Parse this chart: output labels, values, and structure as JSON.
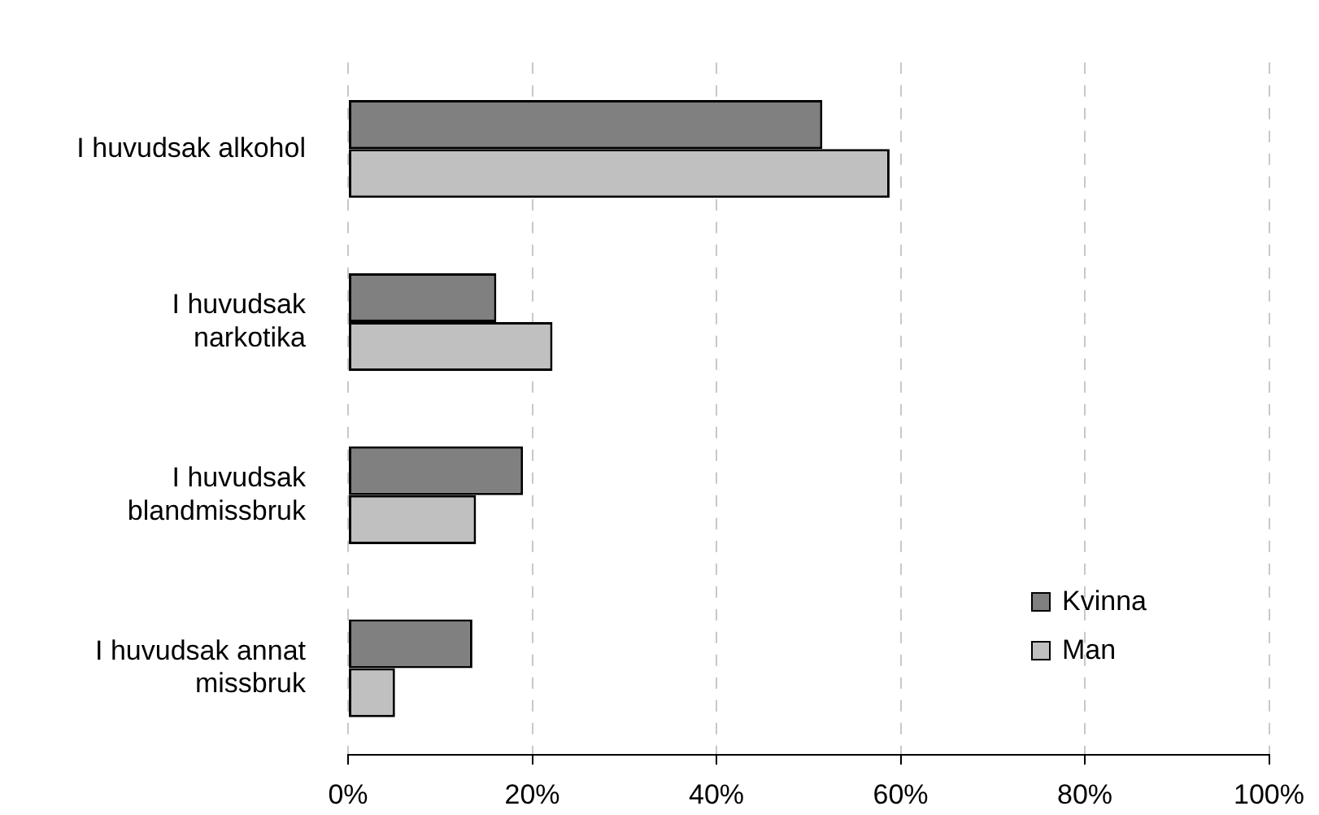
{
  "chart_data": {
    "type": "bar",
    "orientation": "horizontal",
    "categories": [
      "I huvudsak alkohol",
      "I huvudsak narkotika",
      "I huvudsak blandmissbruk",
      "I huvudsak annat missbruk"
    ],
    "series": [
      {
        "name": "Kvinna",
        "color": "#808080",
        "values": [
          51.5,
          16.1,
          19.0,
          13.5
        ]
      },
      {
        "name": "Man",
        "color": "#c0c0c0",
        "values": [
          58.8,
          22.2,
          13.9,
          5.1
        ]
      }
    ],
    "xlim": [
      0,
      100
    ],
    "xticks": [
      {
        "value": 0,
        "label": "0%"
      },
      {
        "value": 20,
        "label": "20%"
      },
      {
        "value": 40,
        "label": "40%"
      },
      {
        "value": 60,
        "label": "60%"
      },
      {
        "value": 80,
        "label": "80%"
      },
      {
        "value": 100,
        "label": "100%"
      }
    ],
    "grid": "x",
    "legend": "bottom right"
  }
}
